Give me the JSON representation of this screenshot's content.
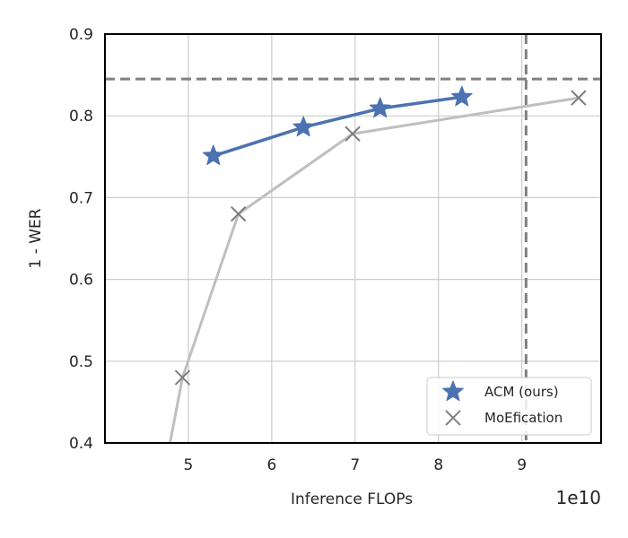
{
  "chart_data": {
    "type": "line",
    "xlabel": "Inference FLOPs",
    "ylabel": "1 - WER",
    "x_offset_label": "1e10",
    "xlim": [
      4.0,
      9.95
    ],
    "ylim": [
      0.4,
      0.9
    ],
    "x_ticks": [
      5,
      6,
      7,
      8,
      9
    ],
    "y_ticks": [
      0.4,
      0.5,
      0.6,
      0.7,
      0.8,
      0.9
    ],
    "x_tick_labels": [
      "5",
      "6",
      "7",
      "8",
      "9"
    ],
    "y_tick_labels": [
      "0.4",
      "0.5",
      "0.6",
      "0.7",
      "0.8",
      "0.9"
    ],
    "grid": true,
    "legend_position": "bottom-right",
    "reference_lines": {
      "horizontal_y": 0.845,
      "vertical_x": 9.05,
      "color": "#808080"
    },
    "series": [
      {
        "name": "ACM (ours)",
        "color": "#4c72b0",
        "marker": "star",
        "x": [
          5.3,
          6.38,
          7.3,
          8.28
        ],
        "y": [
          0.751,
          0.786,
          0.809,
          0.823
        ]
      },
      {
        "name": "MoEfication",
        "color": "#bfbfbf",
        "marker_color": "#7f7f7f",
        "marker": "x",
        "x": [
          4.78,
          4.93,
          5.6,
          6.97,
          9.68
        ],
        "y": [
          0.4,
          0.48,
          0.68,
          0.778,
          0.822
        ],
        "marker_indices": [
          1,
          2,
          3,
          4
        ]
      }
    ]
  }
}
